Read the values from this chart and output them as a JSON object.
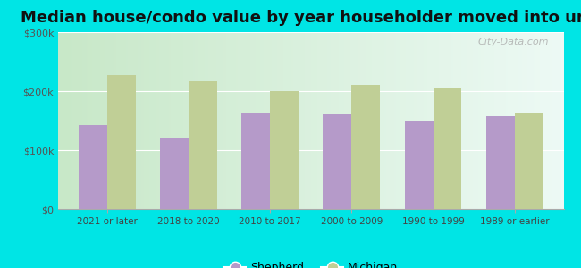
{
  "title": "Median house/condo value by year householder moved into unit",
  "categories": [
    "2021 or later",
    "2018 to 2020",
    "2010 to 2017",
    "2000 to 2009",
    "1990 to 1999",
    "1989 or earlier"
  ],
  "shepherd_values": [
    143000,
    121000,
    163000,
    160000,
    148000,
    158000
  ],
  "michigan_values": [
    228000,
    217000,
    200000,
    210000,
    205000,
    163000
  ],
  "shepherd_color": "#b59ac9",
  "michigan_color": "#c0cf96",
  "background_color": "#00e5e5",
  "ylim": [
    0,
    300000
  ],
  "yticks": [
    0,
    100000,
    200000,
    300000
  ],
  "ytick_labels": [
    "$0",
    "$100k",
    "$200k",
    "$300k"
  ],
  "title_fontsize": 13,
  "legend_labels": [
    "Shepherd",
    "Michigan"
  ],
  "bar_width": 0.35,
  "watermark_text": "City-Data.com"
}
